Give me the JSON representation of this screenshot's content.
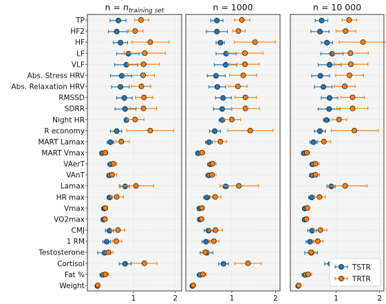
{
  "chart_data": {
    "type": "dot-errorbar",
    "grid": true,
    "legend_position": "lower-right",
    "colors": {
      "TSTR": "#1f77b4",
      "TRTR": "#ff7f0e",
      "panel_bg": "#f5f5f5",
      "grid": "#dcdcdc"
    },
    "legend": [
      {
        "label": "TSTR",
        "color": "#1f77b4"
      },
      {
        "label": "TRTR",
        "color": "#ff7f0e"
      }
    ],
    "categories": [
      "TP",
      "HF2",
      "HF",
      "LF",
      "VLF",
      "Abs. Stress HRV",
      "Abs. Relaxation HRV",
      "RMSSD",
      "SDRR",
      "Night HR",
      "R economy",
      "MART Lamax",
      "MART Vmax",
      "VAerT",
      "VAnT",
      "Lamax",
      "HR max",
      "Vmax",
      "VO2max",
      "CMJ",
      "1 RM",
      "Testosterone",
      "Cortisol",
      "Fat %",
      "Weight"
    ],
    "xticks": [
      1,
      2
    ],
    "panels": [
      {
        "title_prefix": "n = ",
        "title_var": "n",
        "title_sub": "training set",
        "xlim": [
          -0.1,
          2.15
        ],
        "tstr": [
          [
            0.64,
            0.44,
            0.82
          ],
          [
            0.6,
            0.4,
            0.85
          ],
          [
            0.69,
            0.52,
            0.86
          ],
          [
            0.88,
            0.6,
            1.13
          ],
          [
            0.83,
            0.55,
            1.1
          ],
          [
            0.72,
            0.45,
            0.96
          ],
          [
            0.69,
            0.48,
            0.9
          ],
          [
            0.78,
            0.6,
            0.97
          ],
          [
            0.8,
            0.56,
            1.06
          ],
          [
            0.83,
            0.78,
            0.88
          ],
          [
            0.6,
            0.45,
            0.72
          ],
          [
            0.45,
            0.37,
            0.53
          ],
          [
            0.25,
            0.2,
            0.3
          ],
          [
            0.45,
            0.39,
            0.51
          ],
          [
            0.42,
            0.37,
            0.47
          ],
          [
            0.8,
            0.68,
            0.9
          ],
          [
            0.43,
            0.37,
            0.49
          ],
          [
            0.3,
            0.24,
            0.36
          ],
          [
            0.28,
            0.23,
            0.33
          ],
          [
            0.43,
            0.33,
            0.53
          ],
          [
            0.36,
            0.27,
            0.45
          ],
          [
            0.31,
            0.15,
            0.46
          ],
          [
            0.8,
            0.66,
            0.94
          ],
          [
            0.27,
            0.2,
            0.34
          ],
          [
            0.14,
            0.11,
            0.17
          ]
        ],
        "trtr": [
          [
            1.18,
            1.03,
            1.36
          ],
          [
            1.04,
            0.88,
            1.23
          ],
          [
            1.4,
            0.96,
            1.85
          ],
          [
            1.27,
            0.78,
            1.76
          ],
          [
            1.24,
            0.87,
            1.62
          ],
          [
            1.23,
            0.86,
            1.5
          ],
          [
            1.19,
            0.95,
            1.41
          ],
          [
            1.25,
            1.05,
            1.46
          ],
          [
            1.24,
            0.92,
            1.55
          ],
          [
            1.04,
            0.86,
            1.25
          ],
          [
            1.4,
            0.84,
            1.96
          ],
          [
            0.71,
            0.58,
            0.9
          ],
          [
            0.33,
            0.26,
            0.38
          ],
          [
            0.52,
            0.44,
            0.6
          ],
          [
            0.49,
            0.41,
            0.6
          ],
          [
            1.06,
            0.66,
            1.48
          ],
          [
            0.6,
            0.46,
            0.76
          ],
          [
            0.33,
            0.28,
            0.38
          ],
          [
            0.32,
            0.27,
            0.36
          ],
          [
            0.63,
            0.47,
            0.79
          ],
          [
            0.59,
            0.49,
            0.72
          ],
          [
            0.4,
            0.33,
            0.51
          ],
          [
            1.26,
            0.95,
            1.56
          ],
          [
            0.33,
            0.25,
            0.41
          ],
          [
            0.15,
            0.12,
            0.17
          ]
        ]
      },
      {
        "title_prefix": "n = 1000",
        "title_var": "",
        "title_sub": "",
        "xlim": [
          -0.05,
          2.1
        ],
        "tstr": [
          [
            0.66,
            0.52,
            0.8
          ],
          [
            0.66,
            0.42,
            0.9
          ],
          [
            0.74,
            0.64,
            0.83
          ],
          [
            0.87,
            0.64,
            1.1
          ],
          [
            0.86,
            0.6,
            1.11
          ],
          [
            0.64,
            0.44,
            0.85
          ],
          [
            0.67,
            0.48,
            0.86
          ],
          [
            0.8,
            0.63,
            0.99
          ],
          [
            0.78,
            0.58,
            1.0
          ],
          [
            0.78,
            0.71,
            0.84
          ],
          [
            0.61,
            0.49,
            0.74
          ],
          [
            0.48,
            0.4,
            0.56
          ],
          [
            0.23,
            0.18,
            0.28
          ],
          [
            0.51,
            0.45,
            0.57
          ],
          [
            0.47,
            0.41,
            0.53
          ],
          [
            0.86,
            0.8,
            0.92
          ],
          [
            0.43,
            0.36,
            0.49
          ],
          [
            0.26,
            0.22,
            0.3
          ],
          [
            0.27,
            0.22,
            0.31
          ],
          [
            0.47,
            0.37,
            0.57
          ],
          [
            0.41,
            0.32,
            0.5
          ],
          [
            0.43,
            0.28,
            0.57
          ],
          [
            0.81,
            0.7,
            0.92
          ],
          [
            0.27,
            0.21,
            0.33
          ],
          [
            0.1,
            0.07,
            0.13
          ]
        ],
        "trtr": [
          [
            1.23,
            1.06,
            1.41
          ],
          [
            1.15,
            1.02,
            1.31
          ],
          [
            1.53,
            1.06,
            1.99
          ],
          [
            1.3,
            0.9,
            1.71
          ],
          [
            1.3,
            0.95,
            1.62
          ],
          [
            1.26,
            0.95,
            1.56
          ],
          [
            1.14,
            0.93,
            1.35
          ],
          [
            1.31,
            1.07,
            1.56
          ],
          [
            1.31,
            0.99,
            1.63
          ],
          [
            1.0,
            0.82,
            1.2
          ],
          [
            1.42,
            0.91,
            1.94
          ],
          [
            0.74,
            0.61,
            0.88
          ],
          [
            0.32,
            0.26,
            0.38
          ],
          [
            0.56,
            0.48,
            0.64
          ],
          [
            0.55,
            0.46,
            0.64
          ],
          [
            1.16,
            0.73,
            1.61
          ],
          [
            0.62,
            0.51,
            0.75
          ],
          [
            0.32,
            0.27,
            0.37
          ],
          [
            0.31,
            0.27,
            0.35
          ],
          [
            0.63,
            0.48,
            0.78
          ],
          [
            0.59,
            0.48,
            0.71
          ],
          [
            0.4,
            0.33,
            0.48
          ],
          [
            1.37,
            1.07,
            1.67
          ],
          [
            0.34,
            0.27,
            0.42
          ],
          [
            0.12,
            0.09,
            0.15
          ]
        ]
      },
      {
        "title_prefix": "n = 10 000",
        "title_var": "",
        "title_sub": "",
        "xlim": [
          -0.05,
          2.1
        ],
        "tstr": [
          [
            0.67,
            0.52,
            0.81
          ],
          [
            0.63,
            0.42,
            0.84
          ],
          [
            0.79,
            0.66,
            0.92
          ],
          [
            0.91,
            0.65,
            1.16
          ],
          [
            0.85,
            0.59,
            1.12
          ],
          [
            0.64,
            0.44,
            0.85
          ],
          [
            0.71,
            0.5,
            0.91
          ],
          [
            0.85,
            0.66,
            1.04
          ],
          [
            0.84,
            0.59,
            1.09
          ],
          [
            0.78,
            0.71,
            0.85
          ],
          [
            0.63,
            0.5,
            0.76
          ],
          [
            0.48,
            0.4,
            0.56
          ],
          [
            0.26,
            0.21,
            0.31
          ],
          [
            0.46,
            0.4,
            0.52
          ],
          [
            0.45,
            0.39,
            0.51
          ],
          [
            0.89,
            0.79,
            0.98
          ],
          [
            0.44,
            0.37,
            0.51
          ],
          [
            0.28,
            0.23,
            0.33
          ],
          [
            0.28,
            0.23,
            0.33
          ],
          [
            0.45,
            0.35,
            0.55
          ],
          [
            0.4,
            0.31,
            0.49
          ],
          [
            0.43,
            0.28,
            0.57
          ],
          [
            0.87,
            0.74,
            1.01
          ],
          [
            0.29,
            0.22,
            0.36
          ],
          [
            0.13,
            0.1,
            0.16
          ]
        ],
        "trtr": [
          [
            1.3,
            1.14,
            1.47
          ],
          [
            1.22,
            1.0,
            1.45
          ],
          [
            1.62,
            1.07,
            2.15
          ],
          [
            1.33,
            0.92,
            1.74
          ],
          [
            1.34,
            0.95,
            1.73
          ],
          [
            1.31,
            0.99,
            1.63
          ],
          [
            1.2,
            0.96,
            1.44
          ],
          [
            1.38,
            1.11,
            1.65
          ],
          [
            1.38,
            1.02,
            1.73
          ],
          [
            1.07,
            0.91,
            1.24
          ],
          [
            1.42,
            0.89,
            1.97
          ],
          [
            0.72,
            0.58,
            0.87
          ],
          [
            0.33,
            0.27,
            0.39
          ],
          [
            0.53,
            0.45,
            0.61
          ],
          [
            0.53,
            0.44,
            0.62
          ],
          [
            1.21,
            0.8,
            1.71
          ],
          [
            0.62,
            0.5,
            0.75
          ],
          [
            0.34,
            0.29,
            0.39
          ],
          [
            0.32,
            0.28,
            0.36
          ],
          [
            0.64,
            0.5,
            0.79
          ],
          [
            0.58,
            0.47,
            0.7
          ],
          [
            0.43,
            0.36,
            0.51
          ],
          [
            1.43,
            1.12,
            1.75
          ],
          [
            0.36,
            0.28,
            0.44
          ],
          [
            0.14,
            0.11,
            0.17
          ]
        ]
      }
    ]
  }
}
